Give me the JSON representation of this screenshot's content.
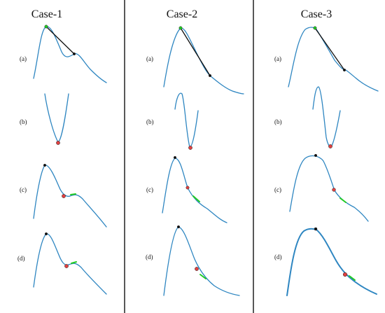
{
  "columns": [
    {
      "title": "Case-1"
    },
    {
      "title": "Case-2"
    },
    {
      "title": "Case-3"
    }
  ],
  "row_labels": [
    "(a)",
    "(b)",
    "(c)",
    "(d)"
  ],
  "colors": {
    "curve": "#2e86c1",
    "tangent_line": "#111111",
    "peak_marker": "#111111",
    "green_marker": "#22cc22",
    "red_marker": "#e04040",
    "divider": "#111111"
  }
}
